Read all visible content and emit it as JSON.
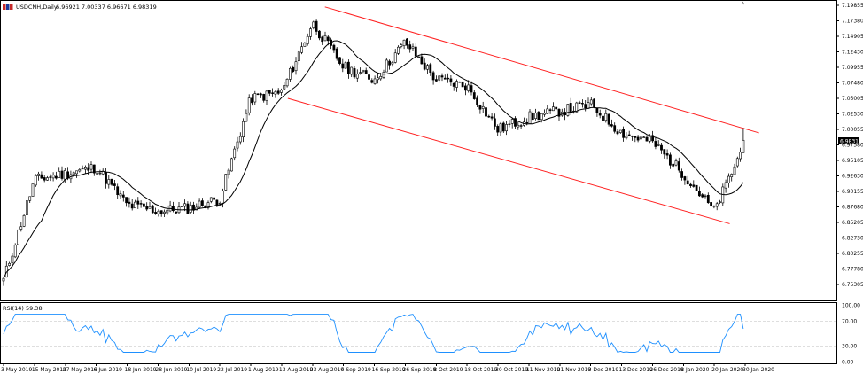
{
  "header": {
    "symbol_label": "USDCNH,Daily",
    "ohlc": "6.96921 7.00337 6.96671 6.98319"
  },
  "rsi_header": "RSI(14) 59.38",
  "price_badge": "6.98319",
  "colors": {
    "channel": "#ff2020",
    "rsi_line": "#1e90ff",
    "candle_up_fill": "#ffffff",
    "candle_down_fill": "#000000",
    "ma_line": "#000000"
  },
  "price_axis": [
    "7.19855",
    "7.17380",
    "7.14905",
    "7.12430",
    "7.09955",
    "7.07480",
    "7.05005",
    "7.02530",
    "7.00055",
    "6.97580",
    "6.95105",
    "6.92630",
    "6.90155",
    "6.87680",
    "6.85205",
    "6.82730",
    "6.80255",
    "6.77780",
    "6.75305"
  ],
  "rsi_axis": [
    "100.00",
    "70.00",
    "30.00",
    "0.00"
  ],
  "date_axis": [
    "3 May 2019",
    "15 May 2019",
    "27 May 2019",
    "6 Jun 2019",
    "18 Jun 2019",
    "28 Jun 2019",
    "10 Jul 2019",
    "22 Jul 2019",
    "1 Aug 2019",
    "13 Aug 2019",
    "23 Aug 2019",
    "4 Sep 2019",
    "16 Sep 2019",
    "26 Sep 2019",
    "8 Oct 2019",
    "18 Oct 2019",
    "30 Oct 2019",
    "11 Nov 2019",
    "21 Nov 2019",
    "3 Dec 2019",
    "13 Dec 2019",
    "26 Dec 2019",
    "8 Jan 2020",
    "20 Jan 2020",
    "30 Jan 2020"
  ],
  "chart_data": {
    "type": "candlestick",
    "symbol": "USDCNH",
    "timeframe": "Daily",
    "ylim": [
      6.745,
      7.205
    ],
    "indicators": [
      "moving average",
      "RSI(14)"
    ],
    "rsi_levels": [
      70,
      30
    ],
    "last": {
      "open": 6.96921,
      "high": 7.00337,
      "low": 6.96671,
      "close": 6.98319
    },
    "close_anchors": [
      {
        "date": "3 May 2019",
        "close": 6.76
      },
      {
        "date": "15 May 2019",
        "close": 6.92
      },
      {
        "date": "27 May 2019",
        "close": 6.93
      },
      {
        "date": "6 Jun 2019",
        "close": 6.94
      },
      {
        "date": "18 Jun 2019",
        "close": 6.88
      },
      {
        "date": "28 Jun 2019",
        "close": 6.87
      },
      {
        "date": "10 Jul 2019",
        "close": 6.875
      },
      {
        "date": "22 Jul 2019",
        "close": 6.89
      },
      {
        "date": "1 Aug 2019",
        "close": 7.05
      },
      {
        "date": "13 Aug 2019",
        "close": 7.06
      },
      {
        "date": "23 Aug 2019",
        "close": 7.17
      },
      {
        "date": "4 Sep 2019",
        "close": 7.1
      },
      {
        "date": "16 Sep 2019",
        "close": 7.08
      },
      {
        "date": "26 Sep 2019",
        "close": 7.14
      },
      {
        "date": "8 Oct 2019",
        "close": 7.08
      },
      {
        "date": "18 Oct 2019",
        "close": 7.07
      },
      {
        "date": "30 Oct 2019",
        "close": 7.0
      },
      {
        "date": "11 Nov 2019",
        "close": 7.02
      },
      {
        "date": "21 Nov 2019",
        "close": 7.03
      },
      {
        "date": "3 Dec 2019",
        "close": 7.04
      },
      {
        "date": "13 Dec 2019",
        "close": 6.995
      },
      {
        "date": "26 Dec 2019",
        "close": 6.98
      },
      {
        "date": "8 Jan 2020",
        "close": 6.93
      },
      {
        "date": "20 Jan 2020",
        "close": 6.87
      },
      {
        "date": "30 Jan 2020",
        "close": 6.98
      }
    ],
    "rsi_anchors": [
      {
        "date": "3 May 2019",
        "rsi": 65
      },
      {
        "date": "1 Aug 2019",
        "rsi": 78
      },
      {
        "date": "8 Jan 2020",
        "rsi": 20
      },
      {
        "date": "30 Jan 2020",
        "rsi": 59.38
      }
    ]
  }
}
